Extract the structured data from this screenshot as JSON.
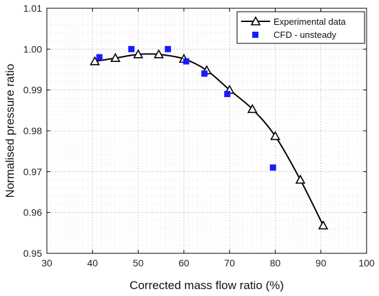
{
  "chart_data": {
    "type": "line",
    "title": "",
    "xlabel": "Corrected mass flow ratio (%)",
    "ylabel": "Normalised pressure ratio",
    "xlim": [
      30,
      100
    ],
    "ylim": [
      0.95,
      1.01
    ],
    "xticks": [
      "30",
      "40",
      "50",
      "60",
      "70",
      "80",
      "90",
      "100"
    ],
    "yticks": [
      "0.95",
      "0.96",
      "0.97",
      "0.98",
      "0.99",
      "1.00",
      "1.01"
    ],
    "grid": true,
    "grid_style": "dotted, major and minor",
    "legend_position": "top-right",
    "series": [
      {
        "name": "Experimental data",
        "marker": "open-triangle",
        "style": "solid line with markers",
        "color": "#000000",
        "points": [
          {
            "x": 40.5,
            "y": 0.997
          },
          {
            "x": 45.0,
            "y": 0.9978
          },
          {
            "x": 50.0,
            "y": 0.9987
          },
          {
            "x": 54.5,
            "y": 0.9987
          },
          {
            "x": 60.0,
            "y": 0.9976
          },
          {
            "x": 65.0,
            "y": 0.9948
          },
          {
            "x": 70.0,
            "y": 0.99
          },
          {
            "x": 75.0,
            "y": 0.9853
          },
          {
            "x": 80.0,
            "y": 0.9787
          },
          {
            "x": 85.5,
            "y": 0.968
          },
          {
            "x": 90.5,
            "y": 0.9568
          }
        ]
      },
      {
        "name": "CFD - unsteady",
        "marker": "filled-square",
        "style": "markers only",
        "color": "#1a1aff",
        "points": [
          {
            "x": 41.5,
            "y": 0.998
          },
          {
            "x": 48.5,
            "y": 1.0
          },
          {
            "x": 56.5,
            "y": 1.0
          },
          {
            "x": 60.5,
            "y": 0.997
          },
          {
            "x": 64.5,
            "y": 0.994
          },
          {
            "x": 69.5,
            "y": 0.989
          },
          {
            "x": 79.5,
            "y": 0.971
          }
        ]
      }
    ]
  }
}
